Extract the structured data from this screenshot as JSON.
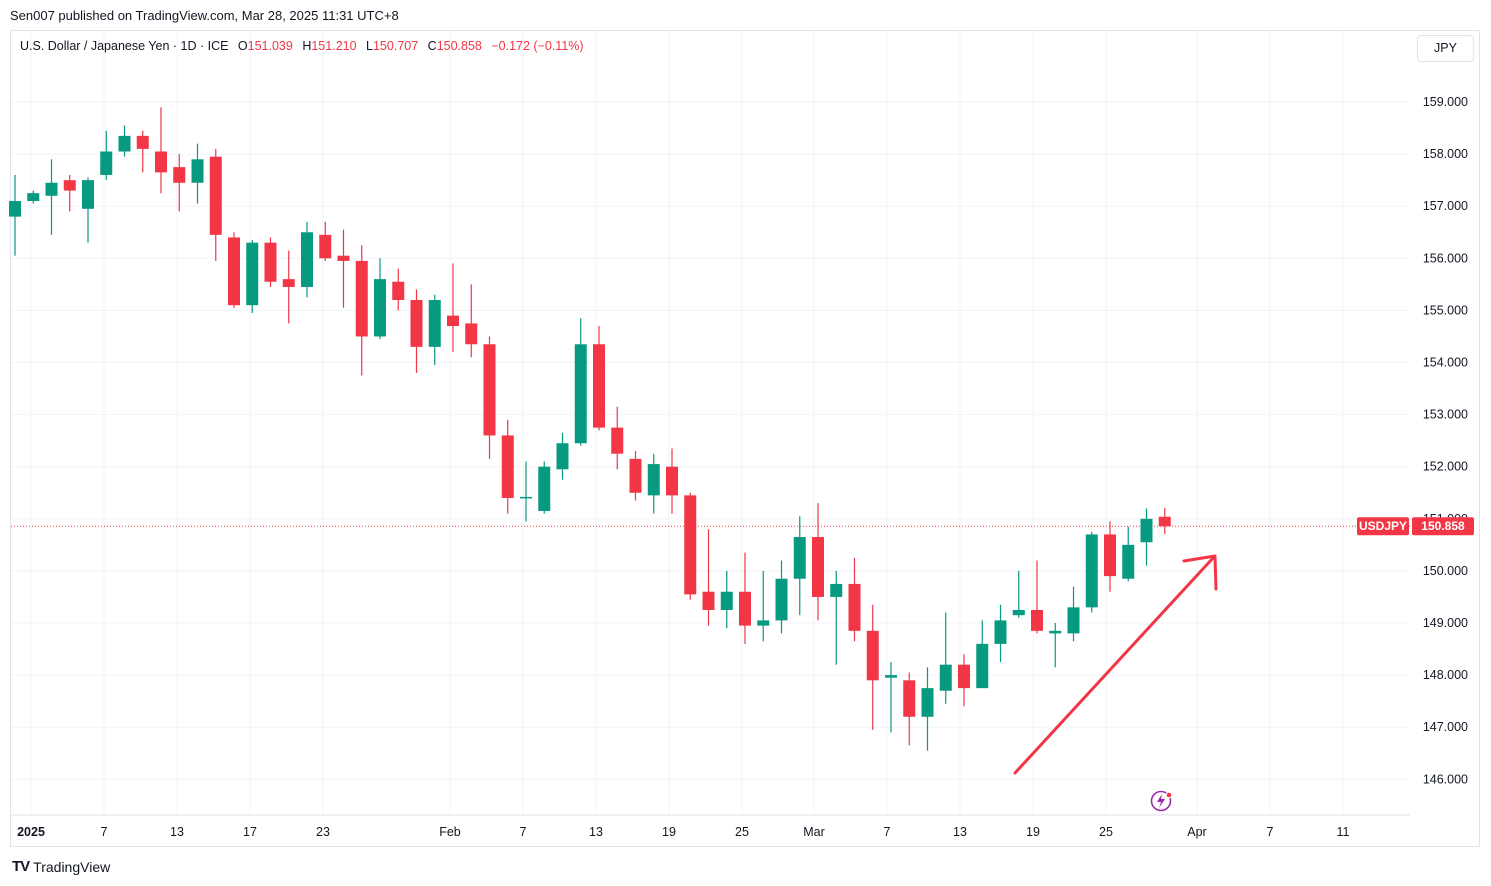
{
  "header": {
    "published_by": "Sen007 published on TradingView.com, Mar 28, 2025 11:31 UTC+8"
  },
  "legend": {
    "symbol": "U.S. Dollar / Japanese Yen · 1D · ICE",
    "o_label": "O",
    "o_value": "151.039",
    "h_label": "H",
    "h_value": "151.210",
    "l_label": "L",
    "l_value": "150.707",
    "c_label": "C",
    "c_value": "150.858",
    "change": "−0.172 (−0.11%)"
  },
  "currency_button": "JPY",
  "price_tag": {
    "symbol": "USDJPY",
    "price": "150.858"
  },
  "branding": {
    "logo_text": "TV",
    "name": "TradingView"
  },
  "colors": {
    "up": "#089981",
    "down": "#f23645",
    "grid": "#f0f3fa",
    "text": "#131722",
    "arrow": "#f23645"
  },
  "chart_data": {
    "type": "candlestick",
    "symbol": "USDJPY",
    "interval": "1D",
    "ylim": [
      145.3,
      159.9
    ],
    "y_ticks": [
      "159.000",
      "158.000",
      "157.000",
      "156.000",
      "155.000",
      "154.000",
      "153.000",
      "152.000",
      "151.000",
      "150.000",
      "149.000",
      "148.000",
      "147.000",
      "146.000"
    ],
    "x_ticks": [
      "2025",
      "7",
      "13",
      "17",
      "23",
      "Feb",
      "7",
      "13",
      "19",
      "25",
      "Mar",
      "7",
      "13",
      "19",
      "25",
      "Apr",
      "7",
      "11"
    ],
    "last_price": 150.858,
    "annotation": "upward-arrow",
    "candles": [
      {
        "o": 156.8,
        "h": 157.6,
        "l": 156.05,
        "c": 157.1
      },
      {
        "o": 157.1,
        "h": 157.3,
        "l": 157.05,
        "c": 157.25
      },
      {
        "o": 157.2,
        "h": 157.9,
        "l": 156.45,
        "c": 157.45
      },
      {
        "o": 157.5,
        "h": 157.6,
        "l": 156.9,
        "c": 157.3
      },
      {
        "o": 156.95,
        "h": 157.55,
        "l": 156.3,
        "c": 157.5
      },
      {
        "o": 157.6,
        "h": 158.45,
        "l": 157.5,
        "c": 158.05
      },
      {
        "o": 158.05,
        "h": 158.55,
        "l": 157.95,
        "c": 158.35
      },
      {
        "o": 158.35,
        "h": 158.45,
        "l": 157.65,
        "c": 158.1
      },
      {
        "o": 158.05,
        "h": 158.9,
        "l": 157.25,
        "c": 157.65
      },
      {
        "o": 157.75,
        "h": 158.0,
        "l": 156.9,
        "c": 157.45
      },
      {
        "o": 157.45,
        "h": 158.2,
        "l": 157.05,
        "c": 157.9
      },
      {
        "o": 157.95,
        "h": 158.1,
        "l": 155.95,
        "c": 156.45
      },
      {
        "o": 156.4,
        "h": 156.5,
        "l": 155.05,
        "c": 155.1
      },
      {
        "o": 155.1,
        "h": 156.35,
        "l": 154.95,
        "c": 156.3
      },
      {
        "o": 156.3,
        "h": 156.4,
        "l": 155.45,
        "c": 155.55
      },
      {
        "o": 155.6,
        "h": 156.15,
        "l": 154.75,
        "c": 155.45
      },
      {
        "o": 155.45,
        "h": 156.7,
        "l": 155.25,
        "c": 156.5
      },
      {
        "o": 156.45,
        "h": 156.7,
        "l": 155.95,
        "c": 156.0
      },
      {
        "o": 156.05,
        "h": 156.55,
        "l": 155.05,
        "c": 155.95
      },
      {
        "o": 155.95,
        "h": 156.25,
        "l": 153.75,
        "c": 154.5
      },
      {
        "o": 154.5,
        "h": 156.0,
        "l": 154.45,
        "c": 155.6
      },
      {
        "o": 155.55,
        "h": 155.8,
        "l": 155.0,
        "c": 155.2
      },
      {
        "o": 155.2,
        "h": 155.4,
        "l": 153.8,
        "c": 154.3
      },
      {
        "o": 154.3,
        "h": 155.3,
        "l": 153.95,
        "c": 155.2
      },
      {
        "o": 154.9,
        "h": 155.9,
        "l": 154.2,
        "c": 154.7
      },
      {
        "o": 154.75,
        "h": 155.5,
        "l": 154.1,
        "c": 154.35
      },
      {
        "o": 154.35,
        "h": 154.5,
        "l": 152.15,
        "c": 152.6
      },
      {
        "o": 152.6,
        "h": 152.9,
        "l": 151.1,
        "c": 151.4
      },
      {
        "o": 151.4,
        "h": 152.1,
        "l": 150.95,
        "c": 151.42
      },
      {
        "o": 151.15,
        "h": 152.1,
        "l": 151.1,
        "c": 152.0
      },
      {
        "o": 151.95,
        "h": 152.65,
        "l": 151.75,
        "c": 152.45
      },
      {
        "o": 152.45,
        "h": 154.85,
        "l": 152.4,
        "c": 154.35
      },
      {
        "o": 154.35,
        "h": 154.7,
        "l": 152.7,
        "c": 152.75
      },
      {
        "o": 152.75,
        "h": 153.15,
        "l": 151.95,
        "c": 152.25
      },
      {
        "o": 152.15,
        "h": 152.3,
        "l": 151.35,
        "c": 151.5
      },
      {
        "o": 151.45,
        "h": 152.25,
        "l": 151.1,
        "c": 152.05
      },
      {
        "o": 152.0,
        "h": 152.35,
        "l": 151.1,
        "c": 151.45
      },
      {
        "o": 151.45,
        "h": 151.5,
        "l": 149.45,
        "c": 149.55
      },
      {
        "o": 149.6,
        "h": 150.8,
        "l": 148.95,
        "c": 149.25
      },
      {
        "o": 149.25,
        "h": 150.0,
        "l": 148.9,
        "c": 149.6
      },
      {
        "o": 149.6,
        "h": 150.35,
        "l": 148.6,
        "c": 148.95
      },
      {
        "o": 148.95,
        "h": 150.0,
        "l": 148.65,
        "c": 149.05
      },
      {
        "o": 149.05,
        "h": 150.2,
        "l": 148.8,
        "c": 149.85
      },
      {
        "o": 149.85,
        "h": 151.05,
        "l": 149.15,
        "c": 150.65
      },
      {
        "o": 150.65,
        "h": 151.3,
        "l": 149.05,
        "c": 149.5
      },
      {
        "o": 149.5,
        "h": 150.0,
        "l": 148.2,
        "c": 149.75
      },
      {
        "o": 149.75,
        "h": 150.25,
        "l": 148.65,
        "c": 148.85
      },
      {
        "o": 148.85,
        "h": 149.35,
        "l": 146.95,
        "c": 147.9
      },
      {
        "o": 147.95,
        "h": 148.25,
        "l": 146.9,
        "c": 148.0
      },
      {
        "o": 147.9,
        "h": 148.05,
        "l": 146.65,
        "c": 147.2
      },
      {
        "o": 147.2,
        "h": 148.15,
        "l": 146.55,
        "c": 147.75
      },
      {
        "o": 147.7,
        "h": 149.2,
        "l": 147.45,
        "c": 148.2
      },
      {
        "o": 148.2,
        "h": 148.4,
        "l": 147.4,
        "c": 147.75
      },
      {
        "o": 147.75,
        "h": 149.05,
        "l": 147.75,
        "c": 148.6
      },
      {
        "o": 148.6,
        "h": 149.35,
        "l": 148.25,
        "c": 149.05
      },
      {
        "o": 149.15,
        "h": 150.0,
        "l": 149.1,
        "c": 149.25
      },
      {
        "o": 149.25,
        "h": 150.2,
        "l": 148.8,
        "c": 148.85
      },
      {
        "o": 148.8,
        "h": 149.0,
        "l": 148.15,
        "c": 148.85
      },
      {
        "o": 148.8,
        "h": 149.7,
        "l": 148.65,
        "c": 149.3
      },
      {
        "o": 149.3,
        "h": 150.75,
        "l": 149.2,
        "c": 150.7
      },
      {
        "o": 150.7,
        "h": 150.95,
        "l": 149.6,
        "c": 149.9
      },
      {
        "o": 149.85,
        "h": 150.85,
        "l": 149.8,
        "c": 150.5
      },
      {
        "o": 150.55,
        "h": 151.2,
        "l": 150.1,
        "c": 151.0
      },
      {
        "o": 151.039,
        "h": 151.21,
        "l": 150.707,
        "c": 150.858
      }
    ]
  }
}
